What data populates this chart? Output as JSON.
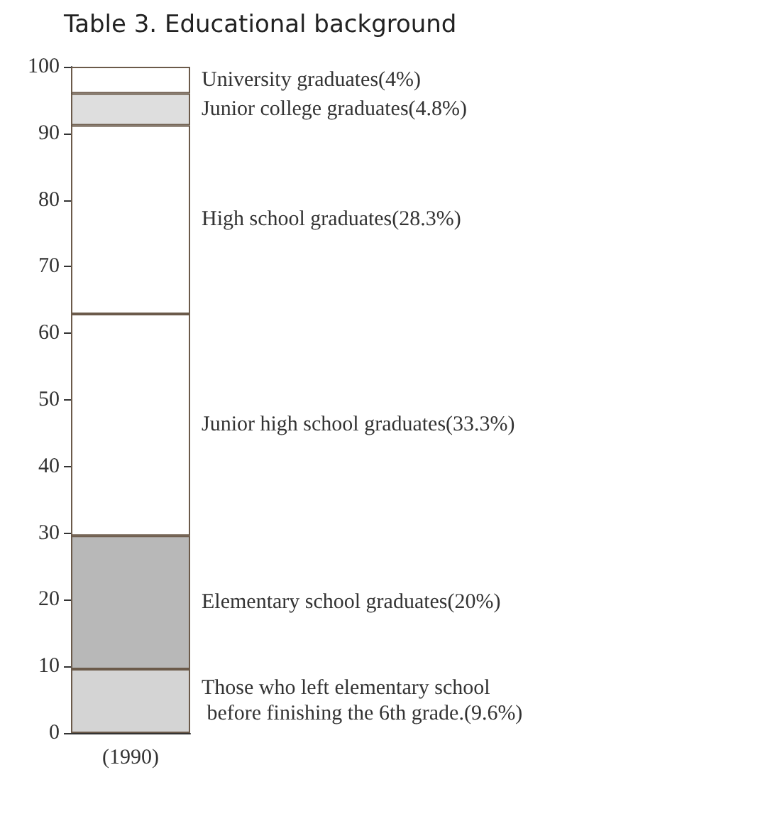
{
  "chart_data": {
    "type": "bar",
    "title": "Table 3. Educational background",
    "categories": [
      "(1990)"
    ],
    "stacked": true,
    "ylim": [
      0,
      100
    ],
    "yticks": [
      0,
      10,
      20,
      30,
      40,
      50,
      60,
      70,
      80,
      90,
      100
    ],
    "legend": false,
    "series": [
      {
        "name": "Those who left elementary school\n before finishing the 6th grade.(9.6%)",
        "color": "#d4d4d4",
        "values": [
          9.6
        ]
      },
      {
        "name": "Elementary school graduates(20%)",
        "color": "#b8b8b8",
        "values": [
          20
        ]
      },
      {
        "name": "Junior high school graduates(33.3%)",
        "color": "#ffffff",
        "values": [
          33.3
        ]
      },
      {
        "name": "High school graduates(28.3%)",
        "color": "#ffffff",
        "values": [
          28.3
        ]
      },
      {
        "name": "Junior college graduates(4.8%)",
        "color": "#dedede",
        "values": [
          4.8
        ]
      },
      {
        "name": "University graduates(4%)",
        "color": "#ffffff",
        "values": [
          4
        ]
      }
    ]
  }
}
